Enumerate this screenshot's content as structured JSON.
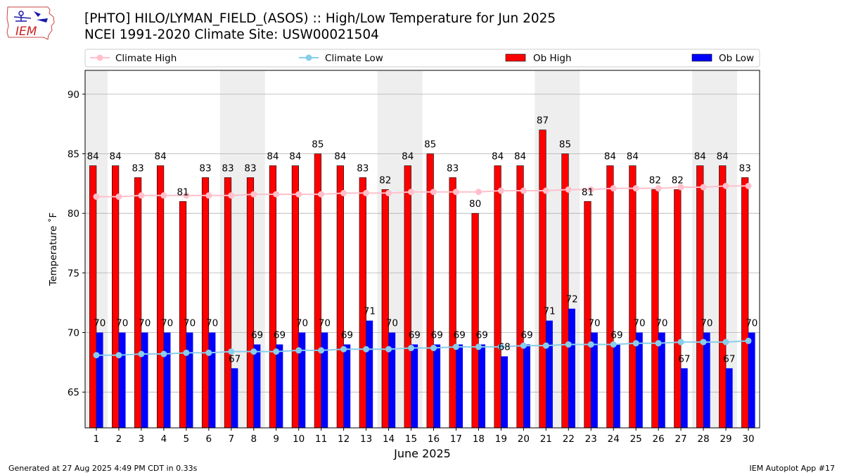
{
  "header": {
    "title_line1": "[PHTO] HILO/LYMAN_FIELD_(ASOS) :: High/Low Temperature for Jun 2025",
    "title_line2": "NCEI 1991-2020 Climate Site: USW00021504"
  },
  "logo": {
    "text": "IEM"
  },
  "footer": {
    "generated": "Generated at 27 Aug 2025 4:49 PM CDT in 0.33s",
    "app": "IEM Autoplot App #17"
  },
  "colors": {
    "ob_high": "#ff0000",
    "ob_low": "#0000ff",
    "climate_high": "#ffc0cb",
    "climate_low": "#87ceeb",
    "weekend_band": "#eeeeee",
    "grid": "#b0b0b0"
  },
  "chart_data": {
    "type": "bar",
    "title": "[PHTO] HILO/LYMAN_FIELD_(ASOS) :: High/Low Temperature for Jun 2025",
    "subtitle": "NCEI 1991-2020 Climate Site: USW00021504",
    "xlabel": "June 2025",
    "ylabel": "Temperature ˚F",
    "ylim": [
      62,
      92
    ],
    "yticks": [
      65,
      70,
      75,
      80,
      85,
      90
    ],
    "grid": "horizontal",
    "legend_placement": "top, above plot, 4 columns",
    "categories": [
      "1",
      "2",
      "3",
      "4",
      "5",
      "6",
      "7",
      "8",
      "9",
      "10",
      "11",
      "12",
      "13",
      "14",
      "15",
      "16",
      "17",
      "18",
      "19",
      "20",
      "21",
      "22",
      "23",
      "24",
      "25",
      "26",
      "27",
      "28",
      "29",
      "30"
    ],
    "shaded_days": [
      1,
      7,
      8,
      14,
      15,
      21,
      22,
      28,
      29
    ],
    "series": [
      {
        "name": "Ob High",
        "kind": "bar",
        "color": "#ff0000",
        "values": [
          84,
          84,
          83,
          84,
          81,
          83,
          83,
          83,
          84,
          84,
          85,
          84,
          83,
          82,
          84,
          85,
          83,
          80,
          84,
          84,
          87,
          85,
          81,
          84,
          84,
          82,
          82,
          84,
          84,
          83
        ]
      },
      {
        "name": "Ob Low",
        "kind": "bar",
        "color": "#0000ff",
        "values": [
          70,
          70,
          70,
          70,
          70,
          70,
          67,
          69,
          69,
          70,
          70,
          69,
          71,
          70,
          69,
          69,
          69,
          69,
          68,
          69,
          71,
          72,
          70,
          69,
          70,
          70,
          67,
          70,
          67,
          70
        ]
      },
      {
        "name": "Climate High",
        "kind": "line",
        "color": "#ffc0cb",
        "values": [
          81.4,
          81.4,
          81.5,
          81.5,
          81.5,
          81.5,
          81.5,
          81.6,
          81.6,
          81.6,
          81.6,
          81.7,
          81.7,
          81.7,
          81.8,
          81.8,
          81.8,
          81.8,
          81.9,
          81.9,
          81.9,
          82.0,
          82.0,
          82.1,
          82.1,
          82.1,
          82.2,
          82.2,
          82.3,
          82.3
        ]
      },
      {
        "name": "Climate Low",
        "kind": "line",
        "color": "#87ceeb",
        "values": [
          68.1,
          68.1,
          68.2,
          68.2,
          68.3,
          68.3,
          68.4,
          68.4,
          68.4,
          68.5,
          68.5,
          68.6,
          68.6,
          68.6,
          68.7,
          68.7,
          68.8,
          68.8,
          68.8,
          68.9,
          68.9,
          69.0,
          69.0,
          69.0,
          69.1,
          69.1,
          69.2,
          69.2,
          69.2,
          69.3
        ]
      }
    ]
  }
}
